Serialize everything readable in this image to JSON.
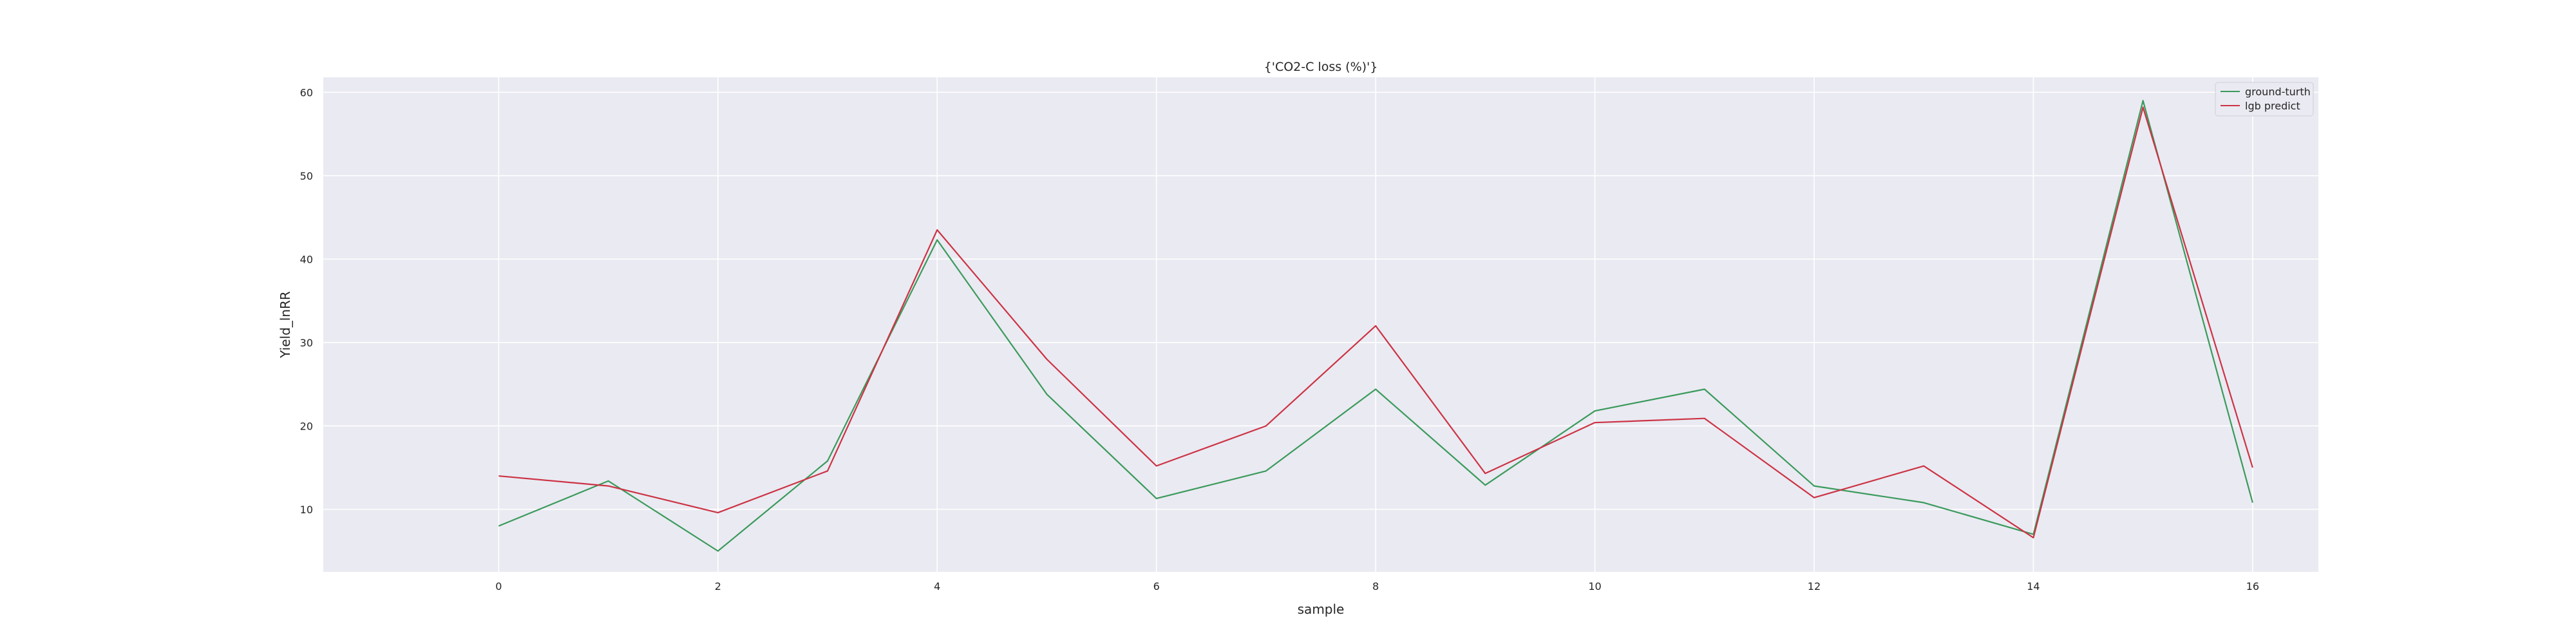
{
  "chart_data": {
    "type": "line",
    "title": "{'CO2-C loss (%)'}",
    "xlabel": "sample",
    "ylabel": "Yield_lnRR",
    "x": [
      0,
      1,
      2,
      3,
      4,
      5,
      6,
      7,
      8,
      9,
      10,
      11,
      12,
      13,
      14,
      15,
      16
    ],
    "xlim": [
      -1.6,
      16.6
    ],
    "ylim": [
      2.5,
      61.8
    ],
    "xticks": [
      0,
      2,
      4,
      6,
      8,
      10,
      12,
      14,
      16
    ],
    "yticks": [
      10,
      20,
      30,
      40,
      50,
      60
    ],
    "grid": true,
    "legend_position": "top-right",
    "series": [
      {
        "name": "ground-turth",
        "color": "#3a9a5b",
        "values": [
          8.0,
          13.4,
          5.0,
          15.8,
          42.3,
          23.8,
          11.3,
          14.6,
          24.4,
          12.9,
          21.8,
          24.4,
          12.8,
          10.8,
          7.0,
          59.0,
          10.8
        ]
      },
      {
        "name": "lgb predict",
        "color": "#cc3344",
        "values": [
          14.0,
          12.8,
          9.6,
          14.6,
          43.5,
          28.0,
          15.2,
          20.0,
          32.0,
          14.3,
          20.4,
          20.9,
          11.4,
          15.2,
          6.6,
          58.2,
          15.0
        ]
      }
    ]
  }
}
